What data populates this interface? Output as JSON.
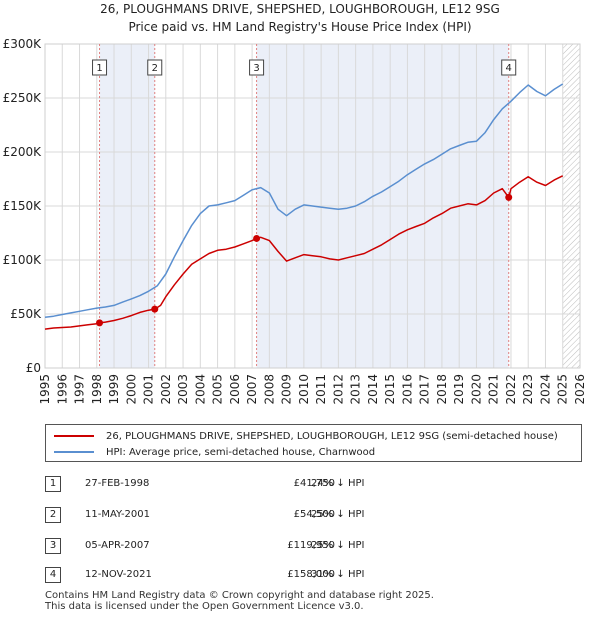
{
  "chart_data": {
    "type": "line",
    "title": "26, PLOUGHMANS DRIVE, SHEPSHED, LOUGHBOROUGH, LE12 9SG",
    "subtitle": "Price paid vs. HM Land Registry's House Price Index (HPI)",
    "xlim": [
      1995,
      2026
    ],
    "ylim": [
      0,
      300000
    ],
    "x_ticks": [
      1995,
      1996,
      1997,
      1998,
      1999,
      2000,
      2001,
      2002,
      2003,
      2004,
      2005,
      2006,
      2007,
      2008,
      2009,
      2010,
      2011,
      2012,
      2013,
      2014,
      2015,
      2016,
      2017,
      2018,
      2019,
      2020,
      2021,
      2022,
      2023,
      2024,
      2025,
      2026
    ],
    "x_tick_labels": [
      "1995",
      "1996",
      "1997",
      "1998",
      "1999",
      "2000",
      "2001",
      "2002",
      "2003",
      "2004",
      "2005",
      "2006",
      "2007",
      "2008",
      "2009",
      "2010",
      "2011",
      "2012",
      "2013",
      "2014",
      "2015",
      "2016",
      "2017",
      "2018",
      "2019",
      "2020",
      "2021",
      "2022",
      "2023",
      "2024",
      "2025",
      "2026"
    ],
    "y_ticks": [
      0,
      50000,
      100000,
      150000,
      200000,
      250000,
      300000
    ],
    "y_tick_labels": [
      "£0",
      "£50K",
      "£100K",
      "£150K",
      "£200K",
      "£250K",
      "£300K"
    ],
    "grid": true,
    "shaded_periods": [
      [
        1998.16,
        2001.36
      ],
      [
        2007.26,
        2021.87
      ]
    ],
    "projection_start": 2025.0,
    "series": [
      {
        "name": "26, PLOUGHMANS DRIVE, SHEPSHED, LOUGHBOROUGH, LE12 9SG (semi-detached house)",
        "color": "#cc0000",
        "x": [
          1995.0,
          1995.5,
          1996.0,
          1996.5,
          1997.0,
          1997.5,
          1998.0,
          1998.16,
          1998.5,
          1999.0,
          1999.5,
          2000.0,
          2000.5,
          2001.0,
          2001.36,
          2001.7,
          2002.0,
          2002.5,
          2003.0,
          2003.5,
          2004.0,
          2004.5,
          2005.0,
          2005.5,
          2006.0,
          2006.5,
          2007.0,
          2007.26,
          2007.5,
          2008.0,
          2008.5,
          2009.0,
          2009.5,
          2010.0,
          2010.5,
          2011.0,
          2011.5,
          2012.0,
          2012.5,
          2013.0,
          2013.5,
          2014.0,
          2014.5,
          2015.0,
          2015.5,
          2016.0,
          2016.5,
          2017.0,
          2017.5,
          2018.0,
          2018.5,
          2019.0,
          2019.5,
          2020.0,
          2020.5,
          2021.0,
          2021.5,
          2021.87,
          2022.0,
          2022.5,
          2023.0,
          2023.5,
          2024.0,
          2024.5,
          2025.0
        ],
        "values": [
          36000,
          37000,
          37500,
          38000,
          39000,
          40000,
          41000,
          41750,
          42500,
          44000,
          46000,
          48500,
          51500,
          53500,
          54500,
          58000,
          66000,
          77000,
          87000,
          96000,
          101000,
          106000,
          109000,
          110000,
          112000,
          115000,
          118000,
          119950,
          121000,
          118000,
          108000,
          99000,
          102000,
          105000,
          104000,
          103000,
          101000,
          100000,
          102000,
          104000,
          106000,
          110000,
          114000,
          119000,
          124000,
          128000,
          131000,
          134000,
          139000,
          143000,
          148000,
          150000,
          152000,
          151000,
          155000,
          162000,
          166000,
          158000,
          166000,
          172000,
          177000,
          172000,
          169000,
          174000,
          178000
        ]
      },
      {
        "name": "HPI: Average price, semi-detached house, Charnwood",
        "color": "#5a8fd0",
        "x": [
          1995.0,
          1995.5,
          1996.0,
          1996.5,
          1997.0,
          1997.5,
          1998.0,
          1998.5,
          1999.0,
          1999.5,
          2000.0,
          2000.5,
          2001.0,
          2001.5,
          2002.0,
          2002.5,
          2003.0,
          2003.5,
          2004.0,
          2004.5,
          2005.0,
          2005.5,
          2006.0,
          2006.5,
          2007.0,
          2007.5,
          2008.0,
          2008.5,
          2009.0,
          2009.5,
          2010.0,
          2010.5,
          2011.0,
          2011.5,
          2012.0,
          2012.5,
          2013.0,
          2013.5,
          2014.0,
          2014.5,
          2015.0,
          2015.5,
          2016.0,
          2016.5,
          2017.0,
          2017.5,
          2018.0,
          2018.5,
          2019.0,
          2019.5,
          2020.0,
          2020.5,
          2021.0,
          2021.5,
          2022.0,
          2022.5,
          2023.0,
          2023.5,
          2024.0,
          2024.5,
          2025.0
        ],
        "values": [
          47000,
          48000,
          49500,
          51000,
          52500,
          54000,
          55500,
          56500,
          58000,
          61000,
          64000,
          67000,
          71000,
          76000,
          87000,
          103000,
          118000,
          132000,
          143000,
          150000,
          151000,
          153000,
          155000,
          160000,
          165000,
          167000,
          162000,
          147000,
          141000,
          147000,
          151000,
          150000,
          149000,
          148000,
          147000,
          148000,
          150000,
          154000,
          159000,
          163000,
          168000,
          173000,
          179000,
          184000,
          189000,
          193000,
          198000,
          203000,
          206000,
          209000,
          210000,
          218000,
          230000,
          240000,
          247000,
          255000,
          262000,
          256000,
          252000,
          258000,
          263000
        ]
      }
    ],
    "sales": [
      {
        "label": "1",
        "date": "27-FEB-1998",
        "price": "£41,750",
        "hpi": "24% ↓ HPI",
        "x": 1998.16,
        "value": 41750
      },
      {
        "label": "2",
        "date": "11-MAY-2001",
        "price": "£54,500",
        "hpi": "25% ↓ HPI",
        "x": 2001.36,
        "value": 54500
      },
      {
        "label": "3",
        "date": "05-APR-2007",
        "price": "£119,950",
        "hpi": "25% ↓ HPI",
        "x": 2007.26,
        "value": 119950
      },
      {
        "label": "4",
        "date": "12-NOV-2021",
        "price": "£158,000",
        "hpi": "31% ↓ HPI",
        "x": 2021.87,
        "value": 158000
      }
    ]
  },
  "legend": {
    "property_label": "26, PLOUGHMANS DRIVE, SHEPSHED, LOUGHBOROUGH, LE12 9SG (semi-detached house)",
    "hpi_label": "HPI: Average price, semi-detached house, Charnwood"
  },
  "footer": {
    "line1": "Contains HM Land Registry data © Crown copyright and database right 2025.",
    "line2": "This data is licensed under the Open Government Licence v3.0."
  },
  "colors": {
    "property": "#cc0000",
    "hpi": "#5a8fd0",
    "shade": "#dde4f3",
    "grid": "#d9d9d9",
    "marker_line": "#e08080"
  }
}
